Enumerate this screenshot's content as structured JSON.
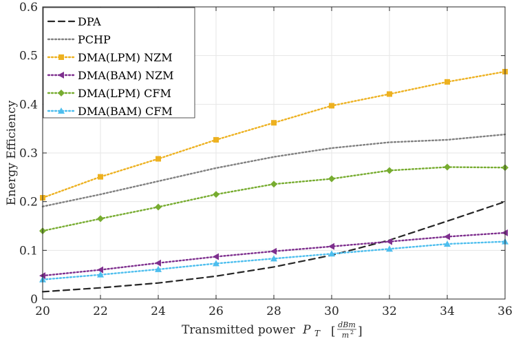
{
  "chart_data": {
    "type": "line",
    "title": "",
    "xlabel": "Transmitted power",
    "xlabel_symbol": "P",
    "xlabel_subscript": "T",
    "xlabel_unit_numerator": "dBm",
    "xlabel_unit_denominator": "m",
    "xlabel_unit_denominator_exponent": "2",
    "ylabel": "Energy Efficiency",
    "xlim": [
      20,
      36
    ],
    "ylim": [
      0,
      0.6
    ],
    "grid": true,
    "legend_position": "top-left",
    "x_ticks": [
      20,
      22,
      24,
      26,
      28,
      30,
      32,
      34,
      36
    ],
    "y_ticks": [
      0,
      0.1,
      0.2,
      0.3,
      0.4,
      0.5,
      0.6
    ],
    "y_tick_labels": [
      "0",
      "0.1",
      "0.2",
      "0.3",
      "0.4",
      "0.5",
      "0.6"
    ],
    "x": [
      20,
      22,
      24,
      26,
      28,
      30,
      32,
      34,
      36
    ],
    "series": [
      {
        "name": "DPA",
        "color": "#262626",
        "dash": "dash",
        "marker": "none",
        "values": [
          0.015,
          0.023,
          0.033,
          0.047,
          0.066,
          0.09,
          0.121,
          0.16,
          0.2
        ]
      },
      {
        "name": "PCHP",
        "color": "#808080",
        "dash": "dot",
        "marker": "none",
        "values": [
          0.19,
          0.215,
          0.242,
          0.269,
          0.292,
          0.31,
          0.322,
          0.327,
          0.338
        ]
      },
      {
        "name": "DMA(LPM) NZM",
        "color": "#EDB120",
        "dash": "dot",
        "marker": "square",
        "values": [
          0.208,
          0.251,
          0.288,
          0.327,
          0.362,
          0.397,
          0.421,
          0.446,
          0.467
        ]
      },
      {
        "name": "DMA(BAM) NZM",
        "color": "#7E2F8E",
        "dash": "dot",
        "marker": "triangle-left",
        "values": [
          0.048,
          0.06,
          0.074,
          0.087,
          0.098,
          0.108,
          0.118,
          0.128,
          0.136
        ]
      },
      {
        "name": "DMA(LPM) CFM",
        "color": "#77AC30",
        "dash": "dot",
        "marker": "diamond",
        "values": [
          0.14,
          0.165,
          0.189,
          0.215,
          0.236,
          0.247,
          0.264,
          0.271,
          0.27
        ]
      },
      {
        "name": "DMA(BAM) CFM",
        "color": "#4DBEEE",
        "dash": "dot",
        "marker": "triangle-up",
        "values": [
          0.04,
          0.05,
          0.061,
          0.073,
          0.083,
          0.093,
          0.103,
          0.113,
          0.118
        ]
      }
    ]
  }
}
